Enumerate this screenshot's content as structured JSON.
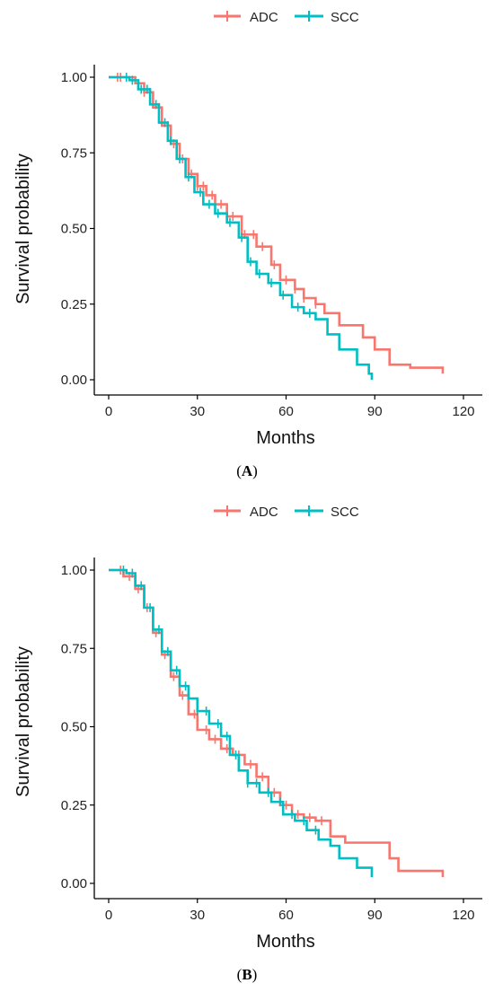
{
  "panels": [
    {
      "label_open": "(",
      "label_letter": "A",
      "label_close": ")"
    },
    {
      "label_open": "(",
      "label_letter": "B",
      "label_close": ")"
    }
  ],
  "colors": {
    "ADC": "#F8766D",
    "SCC": "#00BFC4"
  },
  "chart_data": [
    {
      "type": "line",
      "ylabel": "Survival probability",
      "xlabel": "Months",
      "xlim": [
        0,
        120
      ],
      "ylim": [
        0,
        1
      ],
      "x_ticks": [
        "0",
        "30",
        "60",
        "90",
        "120"
      ],
      "y_ticks": [
        "0.00",
        "0.25",
        "0.50",
        "0.75",
        "1.00"
      ],
      "legend_position": "top",
      "grid": false,
      "series": [
        {
          "name": "ADC",
          "x": [
            0,
            9,
            12,
            15,
            18,
            21,
            24,
            27,
            30,
            33,
            36,
            40,
            45,
            50,
            55,
            58,
            63,
            66,
            70,
            73,
            78,
            86,
            90,
            95,
            98,
            102,
            106,
            113
          ],
          "y": [
            1.0,
            0.98,
            0.95,
            0.9,
            0.84,
            0.78,
            0.73,
            0.68,
            0.64,
            0.61,
            0.58,
            0.54,
            0.48,
            0.44,
            0.38,
            0.33,
            0.3,
            0.27,
            0.25,
            0.22,
            0.18,
            0.14,
            0.1,
            0.05,
            0.05,
            0.04,
            0.04,
            0.02
          ],
          "censor_x": [
            3,
            4,
            12,
            14,
            17,
            20,
            22,
            25,
            28,
            30,
            32,
            35,
            38,
            42,
            46,
            49,
            52,
            56,
            60,
            63,
            66,
            70
          ]
        },
        {
          "name": "SCC",
          "x": [
            0,
            7,
            10,
            14,
            17,
            20,
            23,
            26,
            29,
            32,
            36,
            40,
            44,
            47,
            50,
            54,
            58,
            62,
            66,
            70,
            74,
            78,
            84,
            88,
            89
          ],
          "y": [
            1.0,
            0.99,
            0.96,
            0.91,
            0.85,
            0.79,
            0.73,
            0.67,
            0.62,
            0.58,
            0.55,
            0.52,
            0.47,
            0.39,
            0.35,
            0.32,
            0.28,
            0.24,
            0.22,
            0.2,
            0.15,
            0.1,
            0.05,
            0.02,
            0.0
          ],
          "censor_x": [
            6,
            8,
            11,
            13,
            16,
            19,
            21,
            24,
            27,
            31,
            34,
            37,
            41,
            45,
            48,
            51,
            55,
            59,
            64,
            68
          ]
        }
      ]
    },
    {
      "type": "line",
      "ylabel": "Survival probability",
      "xlabel": "Months",
      "xlim": [
        0,
        120
      ],
      "ylim": [
        0,
        1
      ],
      "x_ticks": [
        "0",
        "30",
        "60",
        "90",
        "120"
      ],
      "y_ticks": [
        "0.00",
        "0.25",
        "0.50",
        "0.75",
        "1.00"
      ],
      "legend_position": "top",
      "grid": false,
      "series": [
        {
          "name": "ADC",
          "x": [
            0,
            5,
            9,
            12,
            15,
            18,
            21,
            24,
            27,
            30,
            34,
            38,
            42,
            46,
            50,
            54,
            58,
            62,
            66,
            70,
            75,
            80,
            88,
            95,
            98,
            104,
            113
          ],
          "y": [
            1.0,
            0.98,
            0.94,
            0.88,
            0.8,
            0.73,
            0.66,
            0.6,
            0.54,
            0.49,
            0.46,
            0.43,
            0.41,
            0.38,
            0.34,
            0.29,
            0.25,
            0.22,
            0.21,
            0.2,
            0.15,
            0.13,
            0.13,
            0.08,
            0.04,
            0.04,
            0.02
          ],
          "censor_x": [
            4,
            7,
            10,
            13,
            16,
            19,
            22,
            25,
            29,
            33,
            36,
            40,
            44,
            48,
            52,
            56,
            60,
            64,
            68,
            72
          ]
        },
        {
          "name": "SCC",
          "x": [
            0,
            6,
            9,
            12,
            15,
            18,
            21,
            24,
            27,
            30,
            34,
            38,
            41,
            44,
            47,
            51,
            55,
            59,
            63,
            67,
            71,
            75,
            78,
            84,
            89
          ],
          "y": [
            1.0,
            0.99,
            0.95,
            0.88,
            0.81,
            0.74,
            0.68,
            0.63,
            0.59,
            0.55,
            0.51,
            0.47,
            0.41,
            0.36,
            0.32,
            0.29,
            0.26,
            0.22,
            0.2,
            0.17,
            0.14,
            0.12,
            0.08,
            0.05,
            0.02
          ],
          "censor_x": [
            5,
            8,
            11,
            14,
            17,
            20,
            23,
            26,
            30,
            33,
            37,
            40,
            43,
            47,
            50,
            54,
            58,
            62,
            66,
            70
          ]
        }
      ]
    }
  ]
}
